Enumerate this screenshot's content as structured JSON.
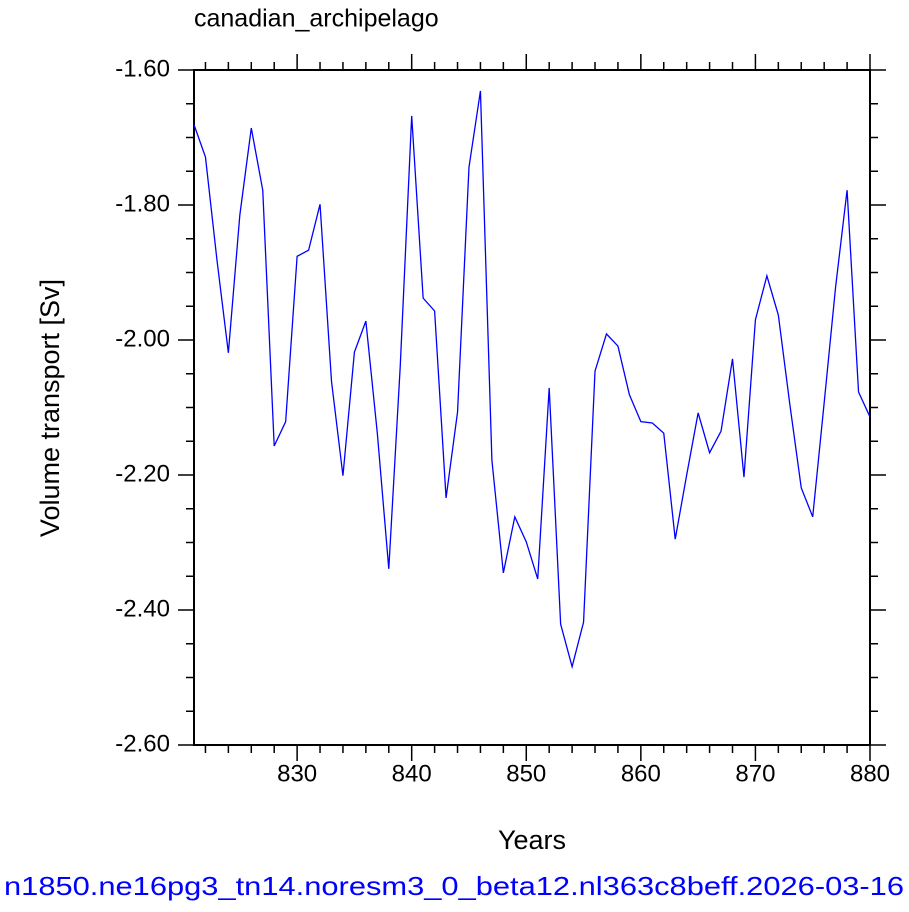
{
  "chart_data": {
    "type": "line",
    "title": "canadian_archipelago",
    "x_label": "Years",
    "y_label": "Volume transport [Sv]",
    "subtitle": "n1850.ne16pg3_tn14.noresm3_0_beta12.nl363c8beff.2026-03-16",
    "x": [
      821,
      822,
      823,
      824,
      825,
      826,
      827,
      828,
      829,
      830,
      831,
      832,
      833,
      834,
      835,
      836,
      837,
      838,
      839,
      840,
      841,
      842,
      843,
      844,
      845,
      846,
      847,
      848,
      849,
      850,
      851,
      852,
      853,
      854,
      855,
      856,
      857,
      858,
      859,
      860,
      861,
      862,
      863,
      864,
      865,
      866,
      867,
      868,
      869,
      870,
      871,
      872,
      873,
      874,
      875,
      876,
      877,
      878,
      879,
      880
    ],
    "series": [
      {
        "name": "canadian_archipelago",
        "color": "#0000ff",
        "values": [
          -1.681,
          -1.729,
          -1.881,
          -2.019,
          -1.815,
          -1.686,
          -1.778,
          -2.157,
          -2.121,
          -1.876,
          -1.867,
          -1.799,
          -2.061,
          -2.201,
          -2.018,
          -1.972,
          -2.138,
          -2.339,
          -2.039,
          -1.668,
          -1.938,
          -1.957,
          -2.234,
          -2.107,
          -1.744,
          -1.631,
          -2.178,
          -2.345,
          -2.262,
          -2.299,
          -2.354,
          -2.071,
          -2.421,
          -2.484,
          -2.418,
          -2.046,
          -1.991,
          -2.009,
          -2.081,
          -2.121,
          -2.123,
          -2.138,
          -2.295,
          -2.2,
          -2.108,
          -2.167,
          -2.135,
          -2.028,
          -2.203,
          -1.97,
          -1.905,
          -1.963,
          -2.095,
          -2.219,
          -2.262,
          -2.093,
          -1.921,
          -1.778,
          -2.077,
          -2.114
        ]
      }
    ],
    "xlim": [
      821,
      880
    ],
    "xticks": [
      830,
      840,
      850,
      860,
      870,
      880
    ],
    "xminorticks": [
      822,
      824,
      826,
      828,
      832,
      834,
      836,
      838,
      842,
      844,
      846,
      848,
      852,
      854,
      856,
      858,
      862,
      864,
      866,
      868,
      872,
      874,
      876,
      878
    ],
    "ylim": [
      -2.6,
      -1.6
    ],
    "yticks": [
      {
        "value": -2.6,
        "label": "-2.60"
      },
      {
        "value": -2.4,
        "label": "-2.40"
      },
      {
        "value": -2.2,
        "label": "-2.20"
      },
      {
        "value": -2.0,
        "label": "-2.00"
      },
      {
        "value": -1.8,
        "label": "-1.80"
      },
      {
        "value": -1.6,
        "label": "-1.60"
      }
    ],
    "yminorticks": [
      -2.55,
      -2.5,
      -2.45,
      -2.35,
      -2.3,
      -2.25,
      -2.15,
      -2.1,
      -2.05,
      -1.95,
      -1.9,
      -1.85,
      -1.75,
      -1.7,
      -1.65
    ],
    "grid": false
  }
}
